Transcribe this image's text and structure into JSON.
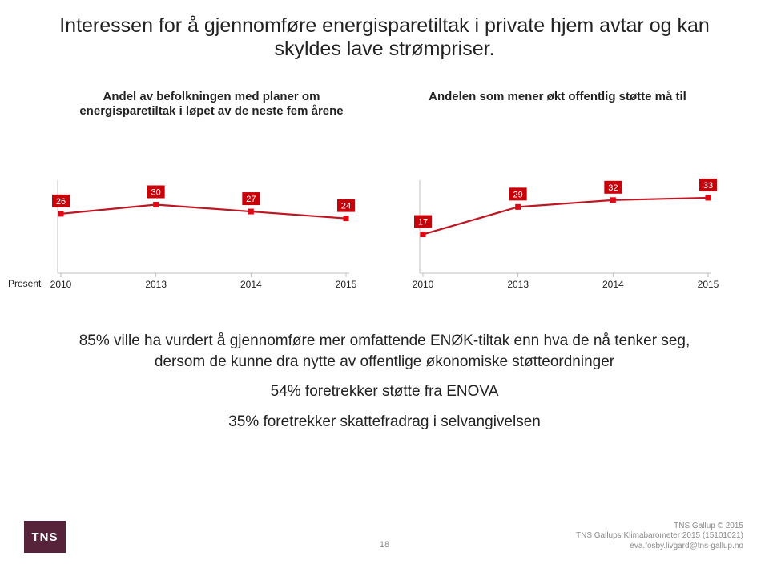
{
  "title": "Interessen for å gjennomføre energisparetiltak i private hjem avtar og kan skyldes lave strømpriser.",
  "subheads": {
    "left": "Andel av befolkningen med planer om energisparetiltak i løpet av de neste fem årene",
    "right": "Andelen som mener\nøkt offentlig støtte må til"
  },
  "y_axis_label": "Prosent",
  "chart_left": {
    "type": "line",
    "categories": [
      "2010",
      "2013",
      "2014",
      "2015"
    ],
    "values": [
      26,
      30,
      27,
      24
    ],
    "line_color": "#be1622",
    "marker_fill": "#e30613",
    "label_bg": "#c7000a",
    "label_text_color": "#ffffff",
    "category_fontsize": 12,
    "value_fontsize": 11,
    "y_domain": [
      0,
      40
    ]
  },
  "chart_right": {
    "type": "line",
    "categories": [
      "2010",
      "2013",
      "2014",
      "2015"
    ],
    "values": [
      17,
      29,
      32,
      33
    ],
    "line_color": "#be1622",
    "marker_fill": "#e30613",
    "label_bg": "#c7000a",
    "label_text_color": "#ffffff",
    "category_fontsize": 12,
    "value_fontsize": 11,
    "y_domain": [
      0,
      40
    ]
  },
  "body": {
    "p1": "85% ville ha vurdert å gjennomføre mer omfattende ENØK-tiltak enn hva de nå tenker seg, dersom de kunne dra nytte av offentlige økonomiske støtteordninger",
    "p2": "54% foretrekker støtte fra ENOVA",
    "p3": "35% foretrekker skattefradrag i selvangivelsen"
  },
  "footer": {
    "logo_text": "TNS",
    "page_number": "18",
    "line1": "TNS Gallup © 2015",
    "line2": "TNS Gallups Klimabarometer 2015 (15101021)",
    "line3": "eva.fosby.livgard@tns-gallup.no"
  },
  "colors": {
    "logo_bg": "#57233a",
    "footer_text": "#8a8a8a",
    "axis": "#bfbfbf",
    "tick": "#bfbfbf"
  }
}
